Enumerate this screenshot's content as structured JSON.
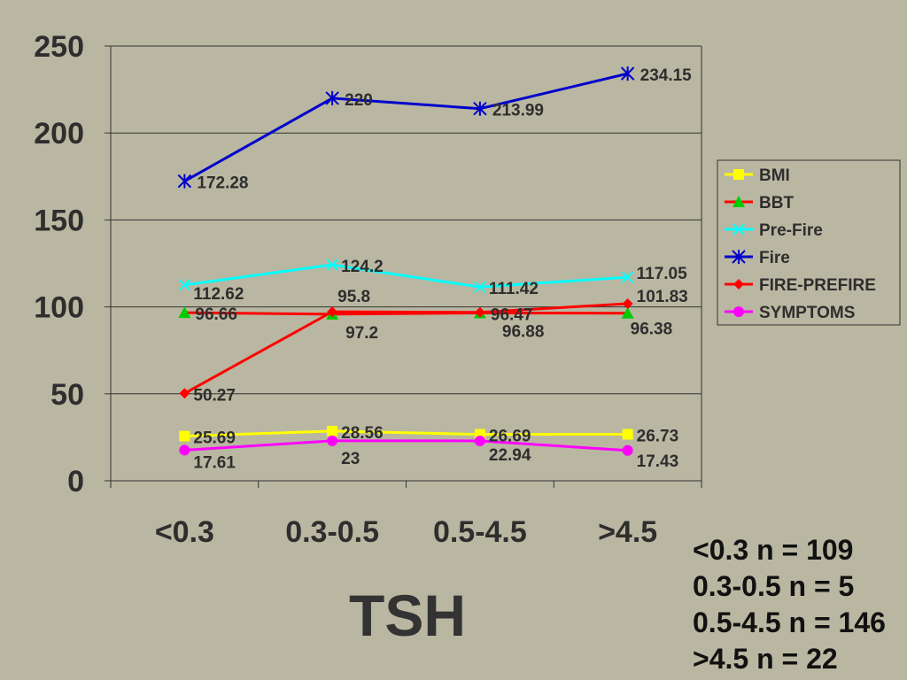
{
  "chart_data": {
    "type": "line",
    "categories": [
      "<0.3",
      "0.3-0.5",
      "0.5-4.5",
      ">4.5"
    ],
    "xlabel": "TSH",
    "ylim": [
      0,
      250
    ],
    "yticks": [
      "0",
      "50",
      "100",
      "150",
      "200",
      "250"
    ],
    "grid": true,
    "legend_position": "right",
    "series": [
      {
        "name": "BMI",
        "values": [
          25.69,
          28.56,
          26.69,
          26.73
        ],
        "labels": [
          "25.69",
          "28.56",
          "26.69",
          "26.73"
        ],
        "color": "#ffff00",
        "marker": "square"
      },
      {
        "name": "BBT",
        "values": [
          96.66,
          95.8,
          96.47,
          96.38
        ],
        "labels": [
          "96.66",
          "95.8",
          "96.47",
          "96.38"
        ],
        "color": "#ff0000",
        "marker": "triangle",
        "marker_color": "#00cc00"
      },
      {
        "name": "Pre-Fire",
        "values": [
          112.62,
          124.2,
          111.42,
          117.05
        ],
        "labels": [
          "112.62",
          "124.2",
          "111.42",
          "117.05"
        ],
        "color": "#00ffff",
        "marker": "x"
      },
      {
        "name": "Fire",
        "values": [
          172.28,
          220,
          213.99,
          234.15
        ],
        "labels": [
          "172.28",
          "220",
          "213.99",
          "234.15"
        ],
        "color": "#0000cc",
        "marker": "star"
      },
      {
        "name": "FIRE-PREFIRE",
        "values": [
          50.27,
          97.2,
          96.88,
          101.83
        ],
        "labels": [
          "50.27",
          "97.2",
          "96.88",
          "101.83"
        ],
        "color": "#ff0000",
        "marker": "diamond"
      },
      {
        "name": "SYMPTOMS",
        "values": [
          17.61,
          23,
          22.94,
          17.43
        ],
        "labels": [
          "17.61",
          "23",
          "22.94",
          "17.43"
        ],
        "color": "#ff00ff",
        "marker": "circle"
      }
    ]
  },
  "notes": [
    "<0.3 n = 109",
    "0.3-0.5 n = 5",
    "0.5-4.5 n = 146",
    ">4.5 n = 22"
  ]
}
